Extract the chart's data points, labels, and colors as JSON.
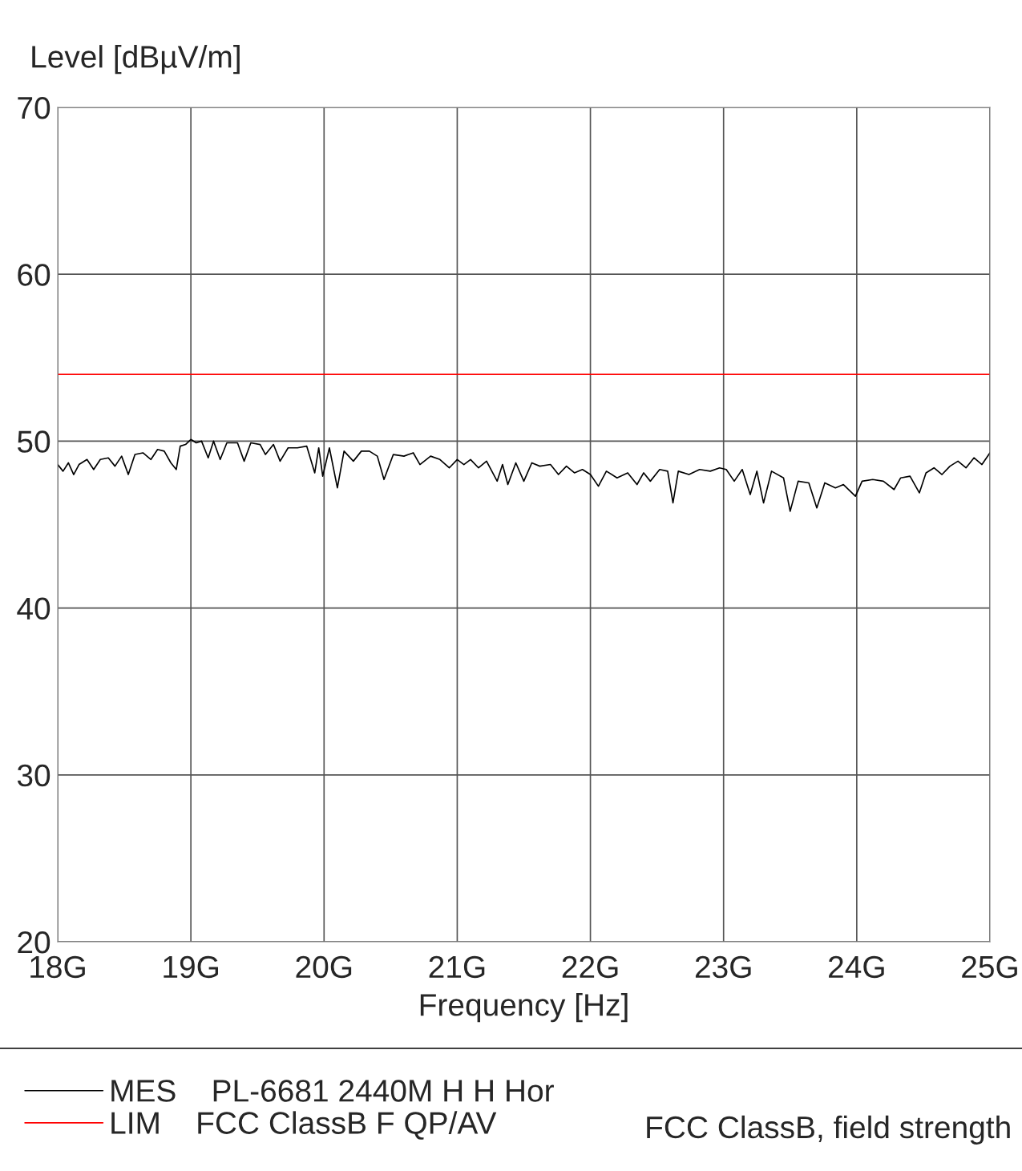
{
  "chart_data": {
    "type": "line",
    "xlabel": "Frequency [Hz]",
    "ylabel": "Level [dBµV/m]",
    "xlim": [
      18,
      25
    ],
    "ylim": [
      20,
      70
    ],
    "xticks": [
      {
        "value": 18,
        "label": "18G"
      },
      {
        "value": 19,
        "label": "19G"
      },
      {
        "value": 20,
        "label": "20G"
      },
      {
        "value": 21,
        "label": "21G"
      },
      {
        "value": 22,
        "label": "22G"
      },
      {
        "value": 23,
        "label": "23G"
      },
      {
        "value": 24,
        "label": "24G"
      },
      {
        "value": 25,
        "label": "25G"
      }
    ],
    "yticks": [
      20,
      30,
      40,
      50,
      60,
      70
    ],
    "grid": true,
    "legend": "bottom",
    "series": [
      {
        "name": "MES    PL-6681 2440M H H Hor",
        "color": "#000000",
        "x": [
          18.0,
          18.04,
          18.08,
          18.12,
          18.16,
          18.22,
          18.27,
          18.32,
          18.38,
          18.43,
          18.48,
          18.53,
          18.58,
          18.64,
          18.7,
          18.75,
          18.8,
          18.85,
          18.89,
          18.92,
          18.96,
          19.0,
          19.04,
          19.08,
          19.13,
          19.17,
          19.22,
          19.27,
          19.35,
          19.4,
          19.45,
          19.52,
          19.56,
          19.62,
          19.67,
          19.73,
          19.8,
          19.87,
          19.93,
          19.96,
          19.99,
          20.04,
          20.1,
          20.15,
          20.22,
          20.28,
          20.34,
          20.4,
          20.45,
          20.52,
          20.6,
          20.67,
          20.72,
          20.8,
          20.87,
          20.94,
          21.0,
          21.05,
          21.1,
          21.16,
          21.22,
          21.3,
          21.34,
          21.38,
          21.44,
          21.5,
          21.56,
          21.62,
          21.7,
          21.76,
          21.82,
          21.88,
          21.94,
          22.0,
          22.06,
          22.12,
          22.2,
          22.28,
          22.35,
          22.4,
          22.45,
          22.52,
          22.58,
          22.62,
          22.66,
          22.74,
          22.82,
          22.9,
          22.97,
          23.02,
          23.08,
          23.14,
          23.2,
          23.25,
          23.3,
          23.36,
          23.45,
          23.5,
          23.56,
          23.64,
          23.7,
          23.76,
          23.84,
          23.9,
          23.99,
          24.04,
          24.12,
          24.2,
          24.28,
          24.33,
          24.4,
          24.47,
          24.52,
          24.58,
          24.64,
          24.7,
          24.76,
          24.82,
          24.88,
          24.94,
          25.0
        ],
        "values": [
          48.6,
          48.2,
          48.7,
          48.0,
          48.6,
          48.9,
          48.3,
          48.9,
          49.0,
          48.5,
          49.1,
          48.0,
          49.2,
          49.3,
          48.9,
          49.5,
          49.4,
          48.7,
          48.3,
          49.7,
          49.8,
          50.1,
          49.9,
          50.0,
          49.0,
          50.0,
          48.9,
          49.9,
          49.9,
          48.8,
          49.9,
          49.8,
          49.2,
          49.8,
          48.8,
          49.6,
          49.6,
          49.7,
          48.1,
          49.6,
          47.9,
          49.6,
          47.2,
          49.4,
          48.8,
          49.4,
          49.4,
          49.1,
          47.7,
          49.2,
          49.1,
          49.3,
          48.6,
          49.1,
          48.9,
          48.4,
          48.9,
          48.6,
          48.9,
          48.4,
          48.8,
          47.6,
          48.6,
          47.4,
          48.7,
          47.6,
          48.7,
          48.5,
          48.6,
          48.0,
          48.5,
          48.1,
          48.3,
          48.0,
          47.3,
          48.2,
          47.8,
          48.1,
          47.4,
          48.1,
          47.6,
          48.3,
          48.2,
          46.3,
          48.2,
          48.0,
          48.3,
          48.2,
          48.4,
          48.3,
          47.6,
          48.3,
          46.8,
          48.2,
          46.3,
          48.2,
          47.8,
          45.8,
          47.6,
          47.5,
          46.0,
          47.5,
          47.2,
          47.4,
          46.7,
          47.6,
          47.7,
          47.6,
          47.1,
          47.8,
          47.9,
          46.9,
          48.1,
          48.4,
          48.0,
          48.5,
          48.8,
          48.4,
          49.0,
          48.6,
          49.3
        ]
      },
      {
        "name": "LIM    FCC ClassB F QP/AV",
        "color": "#ff0000",
        "x": [
          18,
          25
        ],
        "values": [
          54,
          54
        ]
      }
    ],
    "annotations": [
      "FCC ClassB, field strength"
    ]
  }
}
